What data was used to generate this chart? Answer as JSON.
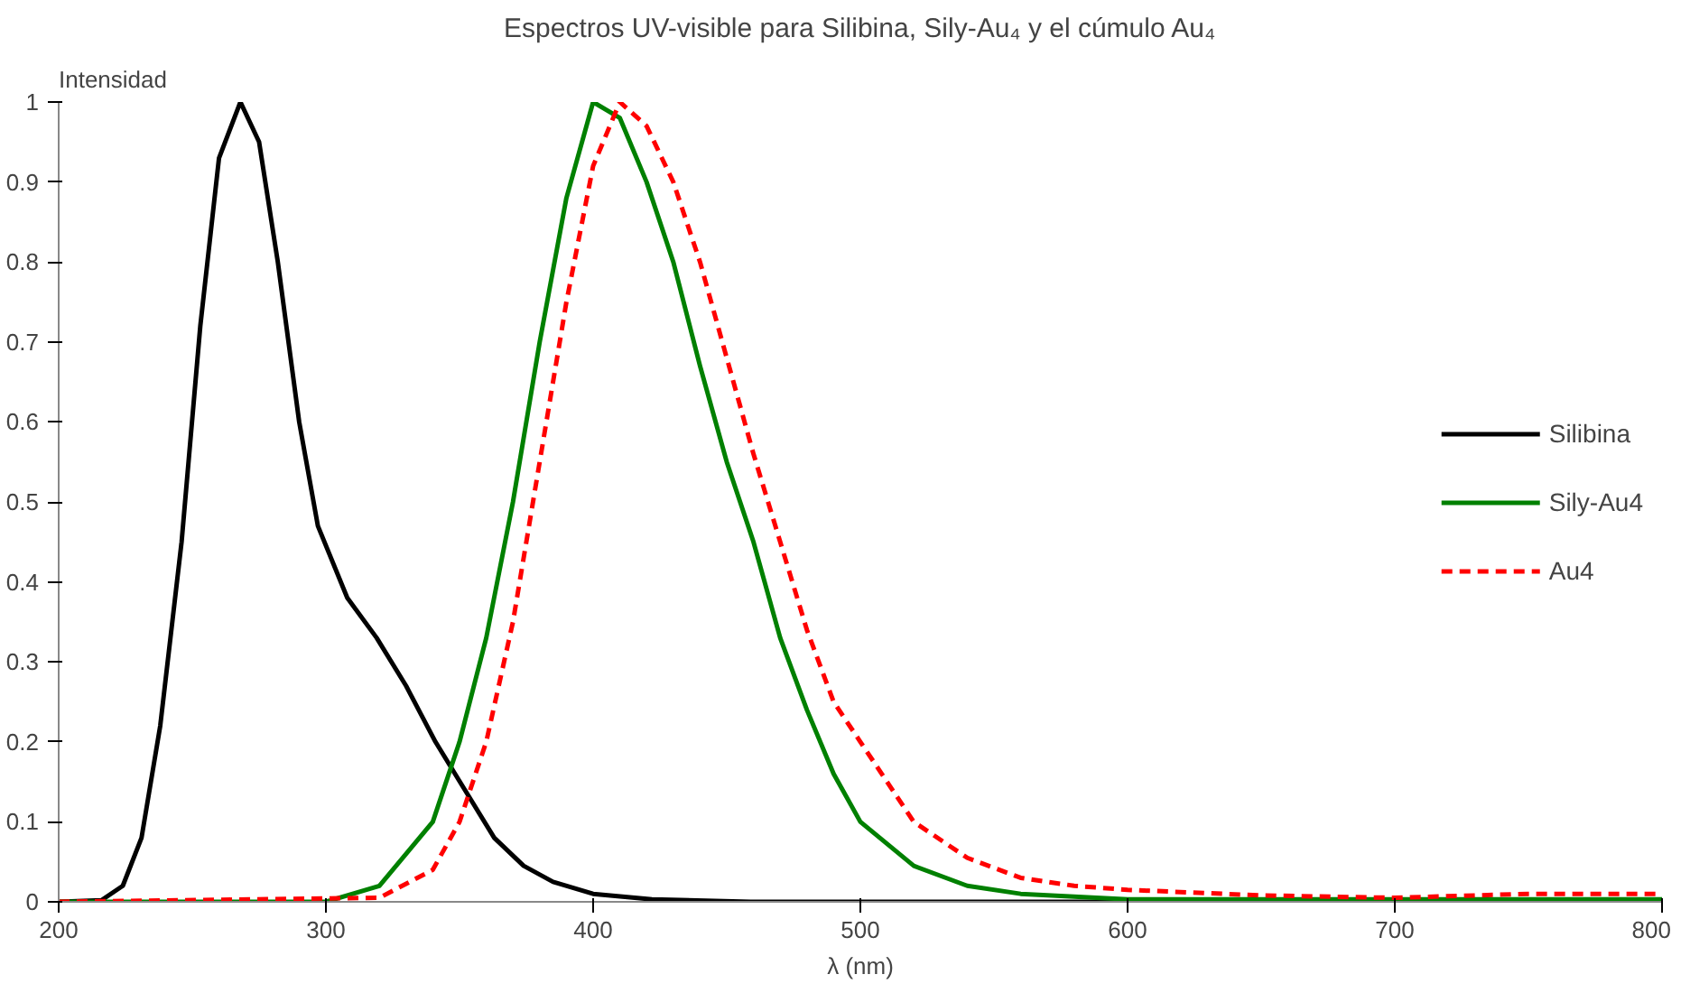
{
  "chart_data": {
    "type": "line",
    "title": "Espectros UV-visible para Silibina, Sily-Au₄ y el cúmulo Au₄",
    "xlabel": "λ (nm)",
    "ylabel": "Intensidad",
    "xlim": [
      200,
      800
    ],
    "ylim": [
      0,
      1
    ],
    "xticks": [
      200,
      300,
      400,
      500,
      600,
      700,
      800
    ],
    "yticks": [
      0,
      0.1,
      0.2,
      0.3,
      0.4,
      0.5,
      0.6,
      0.7,
      0.8,
      0.9,
      1
    ],
    "grid": false,
    "legend": "right",
    "series": [
      {
        "name": "Silibina",
        "color": "#000000",
        "line_style": "solid",
        "x": [
          200,
          216,
          224,
          231,
          238,
          246,
          253,
          260,
          268,
          275,
          282,
          290,
          297,
          308,
          319,
          330,
          341,
          352,
          363,
          374,
          385,
          400,
          422,
          459,
          800
        ],
        "values": [
          0,
          0.002,
          0.02,
          0.08,
          0.22,
          0.45,
          0.72,
          0.93,
          1.0,
          0.95,
          0.8,
          0.6,
          0.47,
          0.38,
          0.33,
          0.27,
          0.2,
          0.14,
          0.08,
          0.045,
          0.025,
          0.01,
          0.003,
          0,
          0
        ]
      },
      {
        "name": "Sily-Au4",
        "color": "#008000",
        "line_style": "solid",
        "x": [
          200,
          300,
          320,
          340,
          350,
          360,
          370,
          380,
          390,
          400,
          410,
          420,
          430,
          440,
          450,
          460,
          470,
          480,
          490,
          500,
          520,
          540,
          560,
          600,
          800
        ],
        "values": [
          0,
          0,
          0.02,
          0.1,
          0.2,
          0.33,
          0.5,
          0.7,
          0.88,
          1.0,
          0.98,
          0.9,
          0.8,
          0.67,
          0.55,
          0.45,
          0.33,
          0.24,
          0.16,
          0.1,
          0.045,
          0.02,
          0.01,
          0.003,
          0.003
        ]
      },
      {
        "name": "Au4",
        "color": "#ff0000",
        "line_style": "dashed",
        "x": [
          200,
          320,
          340,
          350,
          360,
          370,
          380,
          390,
          400,
          410,
          420,
          430,
          440,
          450,
          460,
          470,
          480,
          490,
          500,
          510,
          520,
          540,
          560,
          580,
          600,
          650,
          700,
          750,
          800
        ],
        "values": [
          0,
          0.005,
          0.04,
          0.1,
          0.2,
          0.35,
          0.55,
          0.75,
          0.92,
          1.0,
          0.97,
          0.9,
          0.8,
          0.68,
          0.56,
          0.45,
          0.34,
          0.25,
          0.2,
          0.15,
          0.1,
          0.055,
          0.03,
          0.02,
          0.015,
          0.008,
          0.005,
          0.01,
          0.01
        ]
      }
    ]
  }
}
